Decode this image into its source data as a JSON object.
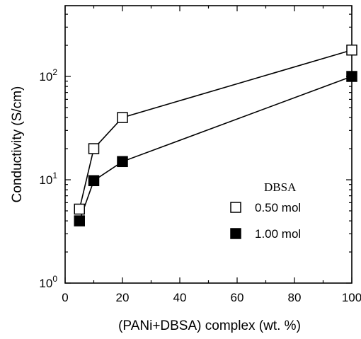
{
  "chart_data": {
    "type": "line",
    "xlabel": "(PANi+DBSA) complex  (wt. %)",
    "ylabel": "Conductivity (S/cm)",
    "xlim": [
      0,
      100
    ],
    "ylim": [
      1,
      500
    ],
    "y_scale": "log",
    "x_ticks": [
      "0",
      "20",
      "40",
      "60",
      "80",
      "100"
    ],
    "x_tick_values": [
      0,
      20,
      40,
      60,
      80,
      100
    ],
    "y_ticks": [
      {
        "value": 1,
        "base": "10",
        "exp": "0"
      },
      {
        "value": 10,
        "base": "10",
        "exp": "1"
      },
      {
        "value": 100,
        "base": "10",
        "exp": "2"
      }
    ],
    "x": [
      5,
      10,
      20,
      100
    ],
    "legend_title": "DBSA",
    "legend_position": "right",
    "grid": false,
    "series": [
      {
        "name": "0.50 mol",
        "marker": "open-square",
        "color": "#000000",
        "values": [
          5.2,
          20,
          40,
          180
        ]
      },
      {
        "name": "1.00 mol",
        "marker": "filled-square",
        "color": "#000000",
        "values": [
          4.0,
          9.8,
          15,
          100
        ]
      }
    ]
  }
}
